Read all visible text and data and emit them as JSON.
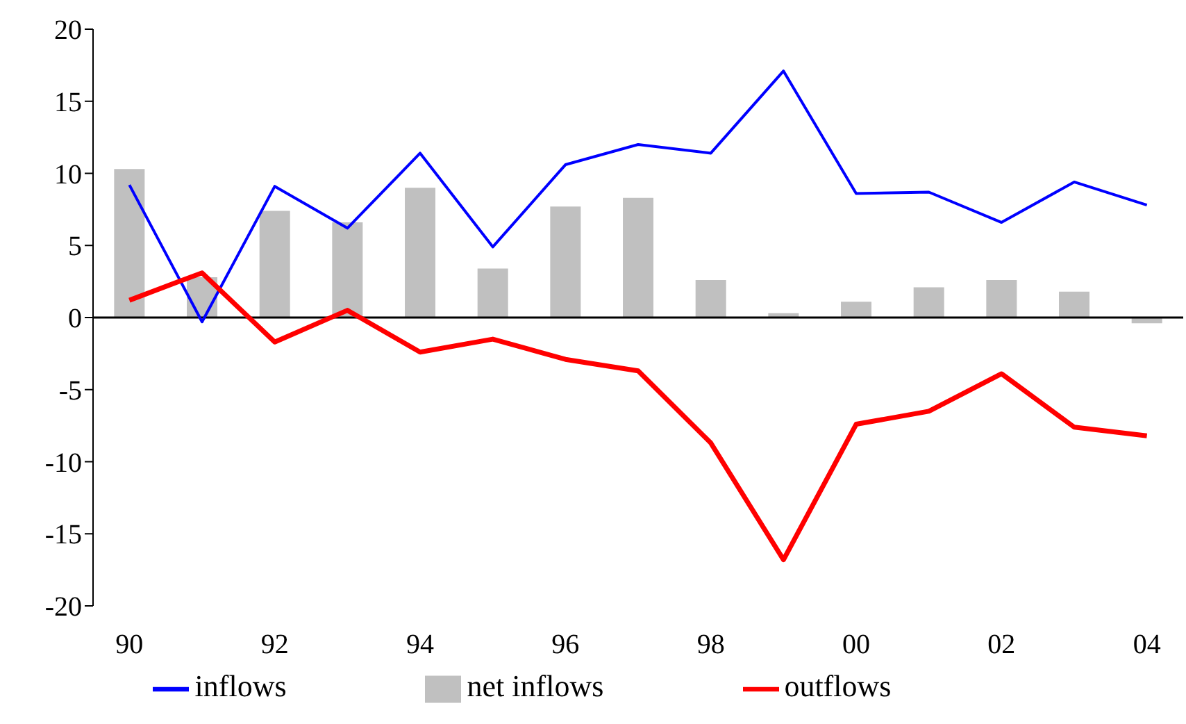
{
  "chart_data": {
    "type": "bar",
    "categories": [
      "90",
      null,
      "92",
      null,
      "94",
      null,
      "96",
      null,
      "98",
      null,
      "00",
      null,
      "02",
      null,
      "04"
    ],
    "series": [
      {
        "name": "net inflows",
        "color": "#c0c0c0",
        "values": [
          10.3,
          2.8,
          7.4,
          6.6,
          9.0,
          3.4,
          7.7,
          8.3,
          2.6,
          0.3,
          1.1,
          2.1,
          2.6,
          1.8,
          -0.4
        ]
      },
      {
        "name": "inflows",
        "type": "line",
        "color": "#0000ff",
        "values": [
          9.2,
          -0.3,
          9.1,
          6.2,
          11.4,
          4.9,
          10.6,
          12.0,
          11.4,
          17.1,
          8.6,
          8.7,
          6.6,
          9.4,
          7.8
        ]
      },
      {
        "name": "outflows",
        "type": "line",
        "color": "#ff0000",
        "values": [
          1.2,
          3.1,
          -1.7,
          0.5,
          -2.4,
          -1.5,
          -2.9,
          -3.7,
          -8.7,
          -16.8,
          -7.4,
          -6.5,
          -3.9,
          -7.6,
          -8.2
        ]
      }
    ],
    "ylim": [
      -20,
      20
    ],
    "yticks": [
      -20,
      -15,
      -10,
      -5,
      0,
      5,
      10,
      15,
      20
    ],
    "legend": "bottom",
    "marker": "none"
  }
}
